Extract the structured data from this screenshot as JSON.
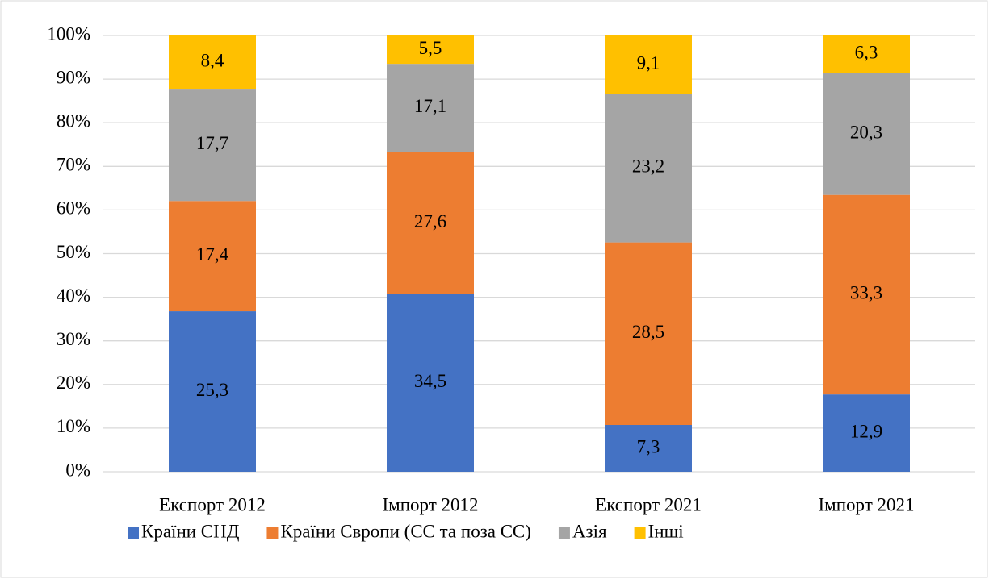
{
  "chart_data": {
    "type": "bar",
    "stacked": "percent",
    "categories": [
      "Експорт 2012",
      "Імпорт 2012",
      "Експорт 2021",
      "Імпорт 2021"
    ],
    "series": [
      {
        "name": "Країни СНД",
        "color": "#4472c4",
        "values": [
          25.3,
          34.5,
          7.3,
          12.9
        ],
        "value_labels": [
          "25,3",
          "34,5",
          "7,3",
          "12,9"
        ]
      },
      {
        "name": "Країни Європи (ЄС та поза ЄС)",
        "color": "#ed7d31",
        "values": [
          17.4,
          27.6,
          28.5,
          33.3
        ],
        "value_labels": [
          "17,4",
          "27,6",
          "28,5",
          "33,3"
        ]
      },
      {
        "name": "Азія",
        "color": "#a5a5a5",
        "values": [
          17.7,
          17.1,
          23.2,
          20.3
        ],
        "value_labels": [
          "17,7",
          "17,1",
          "23,2",
          "20,3"
        ]
      },
      {
        "name": "Інші",
        "color": "#ffc000",
        "values": [
          8.4,
          5.5,
          9.1,
          6.3
        ],
        "value_labels": [
          "8,4",
          "5,5",
          "9,1",
          "6,3"
        ]
      }
    ],
    "ylim": [
      0,
      100
    ],
    "yticks": [
      {
        "value": 0,
        "label": "0%"
      },
      {
        "value": 10,
        "label": "10%"
      },
      {
        "value": 20,
        "label": "20%"
      },
      {
        "value": 30,
        "label": "30%"
      },
      {
        "value": 40,
        "label": "40%"
      },
      {
        "value": 50,
        "label": "50%"
      },
      {
        "value": 60,
        "label": "60%"
      },
      {
        "value": 70,
        "label": "70%"
      },
      {
        "value": 80,
        "label": "80%"
      },
      {
        "value": 90,
        "label": "90%"
      },
      {
        "value": 100,
        "label": "100%"
      }
    ],
    "grid": true,
    "legend": "bottom"
  }
}
